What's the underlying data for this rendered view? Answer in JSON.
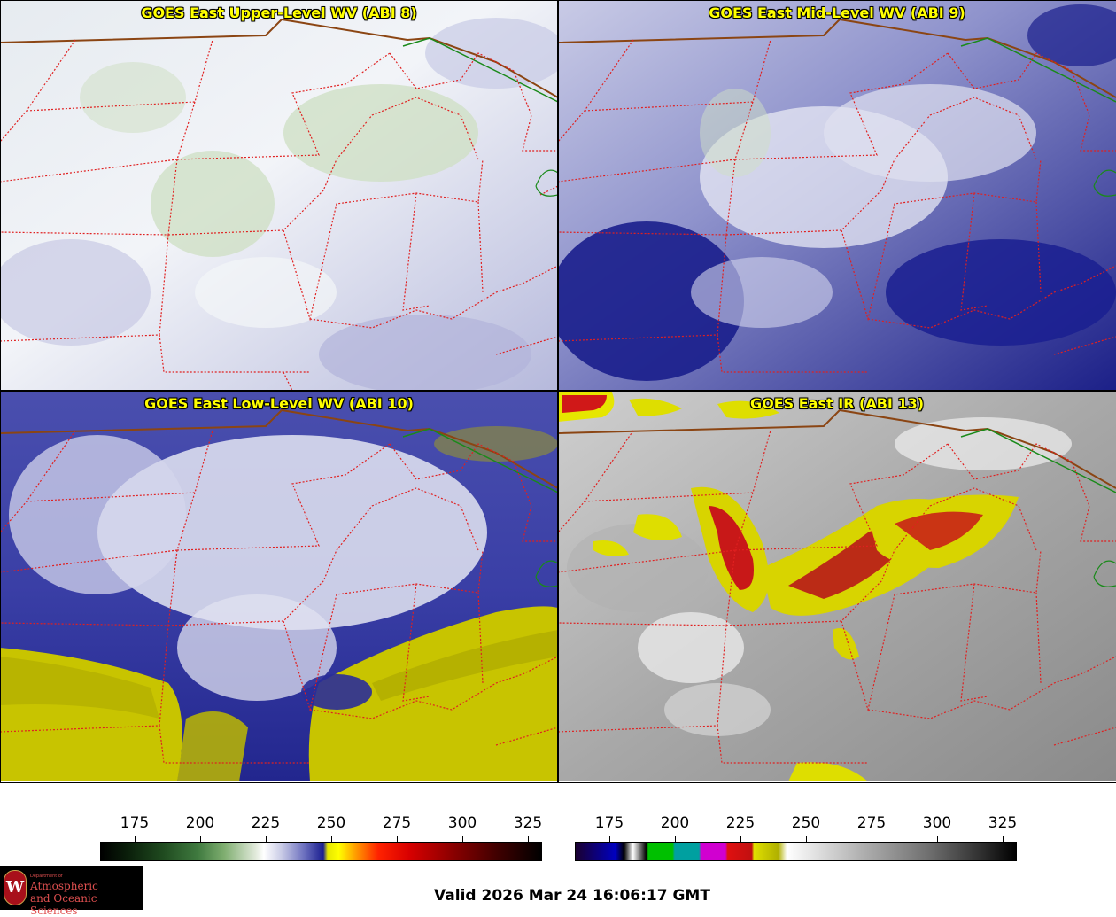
{
  "panels": {
    "upper": {
      "title": "GOES East Upper-Level WV (ABI 8)"
    },
    "mid": {
      "title": "GOES East Mid-Level WV (ABI 9)"
    },
    "low": {
      "title": "GOES East Low-Level WV (ABI 10)"
    },
    "ir": {
      "title": "GOES East IR (ABI 13)"
    }
  },
  "colorbars": {
    "wv": {
      "ticks": [
        "175",
        "200",
        "225",
        "250",
        "275",
        "300",
        "325"
      ]
    },
    "ir": {
      "ticks": [
        "175",
        "200",
        "225",
        "250",
        "275",
        "300",
        "325"
      ]
    }
  },
  "logo": {
    "dept": "Department of",
    "line1": "Atmospheric",
    "line2": "and Oceanic Sciences",
    "seal": "W"
  },
  "footer": {
    "valid": "Valid 2026 Mar 24 16:06:17 GMT"
  },
  "colors": {
    "title": "#ffff00",
    "state_borders": "#e02020",
    "country_border": "#8b4513",
    "lake_outline": "#1a8a1a"
  }
}
